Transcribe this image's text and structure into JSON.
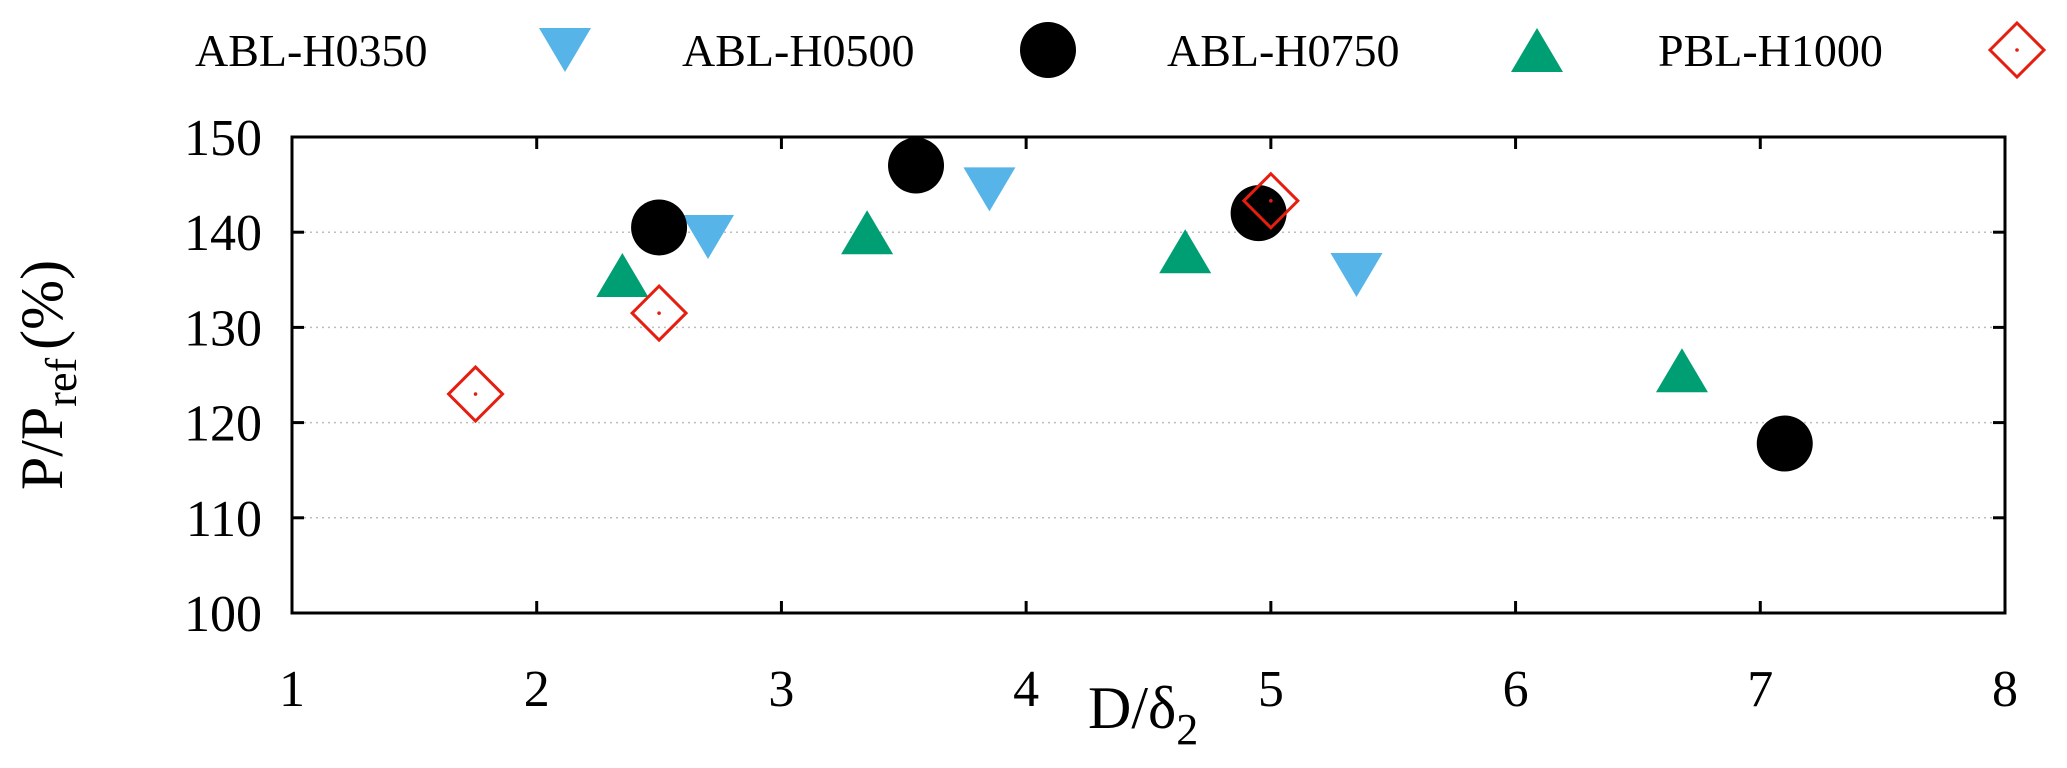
{
  "chart_data": {
    "type": "scatter",
    "xlabel": "D/δ",
    "xlabel_subscript": "2",
    "ylabel": "P/P",
    "ylabel_subscript": "ref",
    "ylabel_suffix": "(%)",
    "xlim": [
      1,
      8
    ],
    "ylim": [
      100,
      150
    ],
    "x_ticks": [
      1,
      2,
      3,
      4,
      5,
      6,
      7,
      8
    ],
    "y_ticks": [
      100,
      110,
      120,
      130,
      140,
      150
    ],
    "grid": "horizontal",
    "legend_position": "top",
    "series": [
      {
        "name": "ABL-H0350",
        "marker": "triangle-down",
        "color": "#56b4e9",
        "points": [
          [
            2.7,
            139.5
          ],
          [
            3.85,
            144.5
          ],
          [
            5.35,
            135.5
          ]
        ]
      },
      {
        "name": "ABL-H0500",
        "marker": "circle",
        "color": "#000000",
        "points": [
          [
            2.5,
            140.5
          ],
          [
            3.55,
            147.0
          ],
          [
            4.95,
            142.0
          ],
          [
            7.1,
            117.8
          ]
        ]
      },
      {
        "name": "ABL-H0750",
        "marker": "triangle-up",
        "color": "#009e73",
        "points": [
          [
            2.35,
            135.5
          ],
          [
            3.35,
            140.0
          ],
          [
            4.65,
            138.0
          ],
          [
            6.68,
            125.5
          ]
        ]
      },
      {
        "name": "PBL-H1000",
        "marker": "diamond-open",
        "color": "#e51e10",
        "points": [
          [
            1.75,
            123.0
          ],
          [
            2.5,
            131.5
          ],
          [
            5.0,
            143.3
          ]
        ]
      }
    ]
  }
}
